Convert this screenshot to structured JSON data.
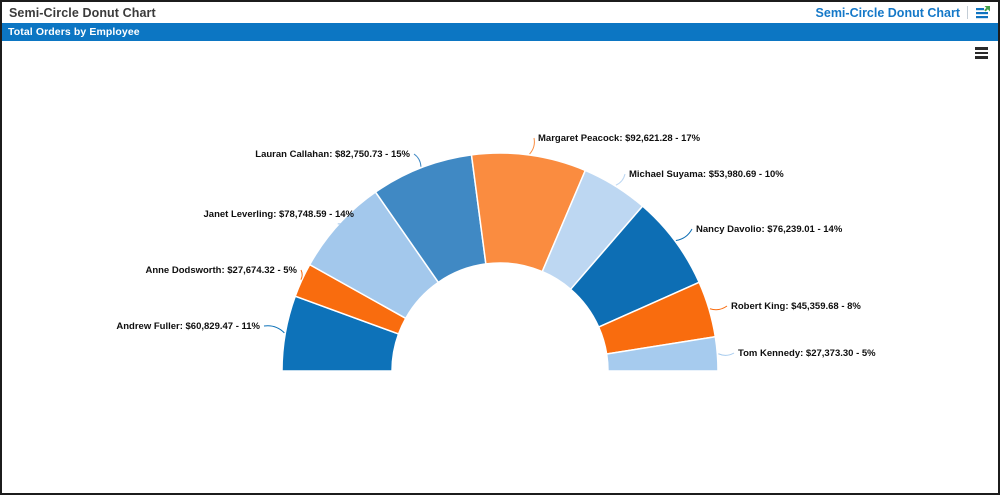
{
  "header": {
    "title": "Semi-Circle Donut Chart",
    "link_label": "Semi-Circle Donut Chart"
  },
  "panel": {
    "title": "Total Orders by Employee"
  },
  "colors": {
    "panel_blue": "#0c76c3",
    "link_blue": "#1478c8",
    "label_text": "#0f0f0f",
    "slice_stroke": "#ffffff"
  },
  "icons": {
    "menu": "hamburger-icon",
    "header": "sample-source-icon"
  },
  "chart_data": {
    "type": "pie",
    "subtype": "semi-circle-donut",
    "title": "Total Orders by Employee",
    "start_angle_deg": 180,
    "end_angle_deg": 0,
    "inner_radius_ratio": 0.495,
    "legend": "none",
    "label_format": "name: $value - percent%",
    "points": [
      {
        "name": "Andrew Fuller",
        "value": 60829.47,
        "percent": 11,
        "label": "Andrew Fuller: $60,829.47 - 11%",
        "color": "#0d72b9"
      },
      {
        "name": "Anne Dodsworth",
        "value": 27674.32,
        "percent": 5,
        "label": "Anne Dodsworth: $27,674.32 - 5%",
        "color": "#f96c0e"
      },
      {
        "name": "Janet Leverling",
        "value": 78748.59,
        "percent": 14,
        "label": "Janet Leverling: $78,748.59 - 14%",
        "color": "#a3c8ec"
      },
      {
        "name": "Lauran Callahan",
        "value": 82750.73,
        "percent": 15,
        "label": "Lauran Callahan: $82,750.73 - 15%",
        "color": "#4089c4"
      },
      {
        "name": "Margaret Peacock",
        "value": 92621.28,
        "percent": 17,
        "label": "Margaret Peacock: $92,621.28 - 17%",
        "color": "#fa8c40"
      },
      {
        "name": "Michael Suyama",
        "value": 53980.69,
        "percent": 10,
        "label": "Michael Suyama: $53,980.69 - 10%",
        "color": "#bdd7f2"
      },
      {
        "name": "Nancy Davolio",
        "value": 76239.01,
        "percent": 14,
        "label": "Nancy Davolio: $76,239.01 - 14%",
        "color": "#0d6eb4"
      },
      {
        "name": "Robert King",
        "value": 45359.68,
        "percent": 8,
        "label": "Robert King: $45,359.68 - 8%",
        "color": "#f96c0e"
      },
      {
        "name": "Tom Kennedy",
        "value": 27373.3,
        "percent": 5,
        "label": "Tom Kennedy: $27,373.30 - 5%",
        "color": "#a6cbee"
      }
    ]
  }
}
